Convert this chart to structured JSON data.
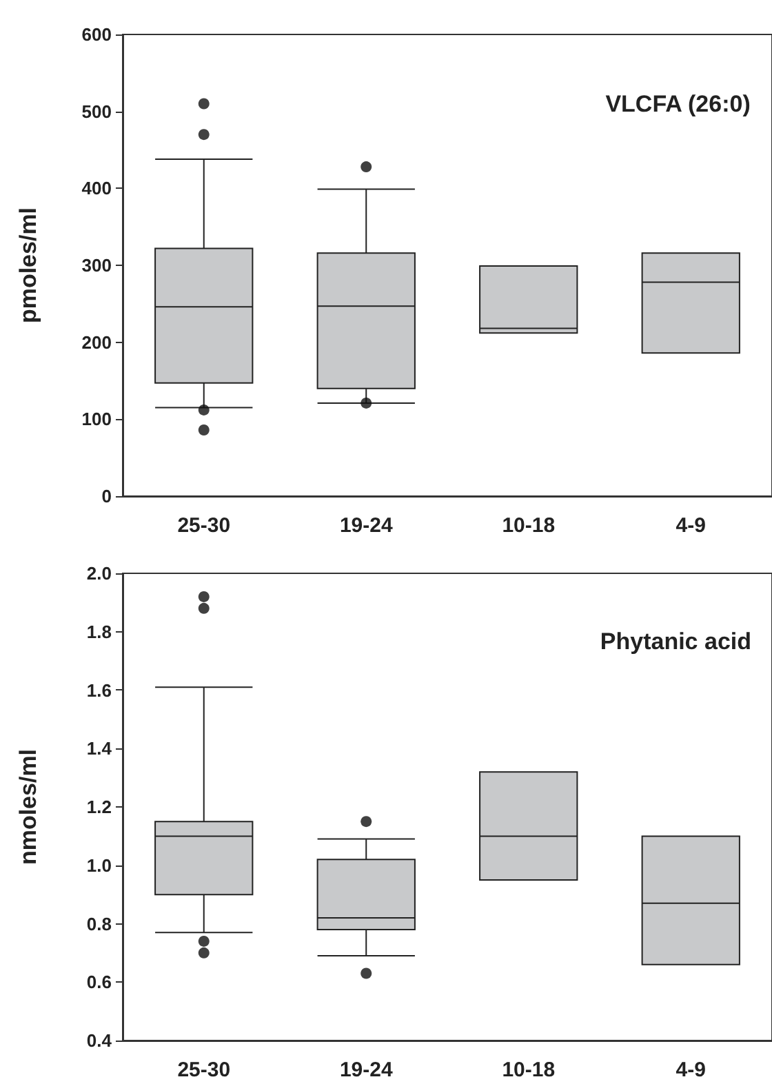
{
  "chart_data": [
    {
      "type": "box",
      "title": "VLCFA (26:0)",
      "ylabel": "pmoles/ml",
      "categories": [
        "25-30",
        "19-24",
        "10-18",
        "4-9"
      ],
      "color": "#c8c9cb",
      "boxes": [
        {
          "low": 115,
          "q1": 147,
          "median": 246,
          "q3": 322,
          "high": 438,
          "outliers": [
            510,
            470,
            112,
            86
          ]
        },
        {
          "low": 121,
          "q1": 140,
          "median": 247,
          "q3": 316,
          "high": 399,
          "outliers": [
            428,
            121
          ]
        },
        {
          "low": 212,
          "q1": 212,
          "median": 218,
          "q3": 299,
          "high": 299
        },
        {
          "low": 186,
          "q1": 186,
          "median": 278,
          "q3": 316,
          "high": 316
        }
      ],
      "ylim": [
        0,
        600
      ],
      "yticks": [
        0,
        100,
        200,
        300,
        400,
        500,
        600
      ]
    },
    {
      "type": "box",
      "title": "Phytanic acid",
      "ylabel": "nmoles/ml",
      "categories": [
        "25-30",
        "19-24",
        "10-18",
        "4-9"
      ],
      "color": "#c8c9cb",
      "boxes": [
        {
          "low": 0.77,
          "q1": 0.9,
          "median": 1.1,
          "q3": 1.15,
          "high": 1.61,
          "outliers": [
            1.92,
            1.88,
            0.74,
            0.7
          ]
        },
        {
          "low": 0.69,
          "q1": 0.78,
          "median": 0.82,
          "q3": 1.02,
          "high": 1.09,
          "outliers": [
            1.15,
            0.63
          ]
        },
        {
          "low": 0.95,
          "q1": 0.95,
          "median": 1.1,
          "q3": 1.32,
          "high": 1.32
        },
        {
          "low": 0.66,
          "q1": 0.66,
          "median": 0.87,
          "q3": 1.1,
          "high": 1.1
        }
      ],
      "ylim": [
        0.4,
        2.0
      ],
      "yticks": [
        {
          "value": 0.4,
          "label": "0.4"
        },
        {
          "value": 0.6,
          "label": "0.6"
        },
        {
          "value": 0.8,
          "label": "0.8"
        },
        {
          "value": 1.0,
          "label": "1.0"
        },
        {
          "value": 1.2,
          "label": "1.2"
        },
        {
          "value": 1.4,
          "label": "1.4"
        },
        {
          "value": 1.6,
          "label": "1.6"
        },
        {
          "value": 1.8,
          "label": "1.8"
        },
        {
          "value": 2.0,
          "label": "2.0"
        }
      ]
    }
  ]
}
